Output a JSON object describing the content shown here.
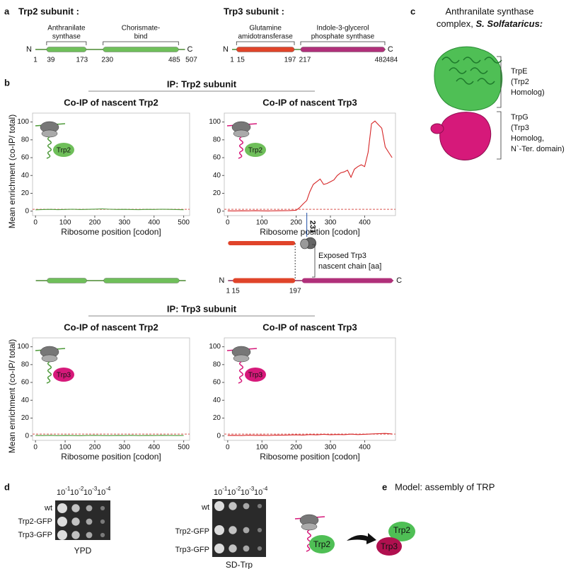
{
  "panel_a": {
    "label": "a",
    "trp2": {
      "title": "Trp2 subunit :",
      "n": "N",
      "c": "C",
      "start": 1,
      "end": 507,
      "domains": [
        {
          "name": [
            "Anthranilate",
            "synthase"
          ],
          "start": 39,
          "end": 173,
          "color": "#6fbf5a"
        },
        {
          "name": [
            "Chorismate-",
            "bind"
          ],
          "start": 230,
          "end": 485,
          "color": "#6fbf5a"
        }
      ]
    },
    "trp3": {
      "title": "Trp3 subunit :",
      "n": "N",
      "c": "C",
      "start": 1,
      "end": 484,
      "domains": [
        {
          "name": [
            "Glutamine",
            "amidotransferase"
          ],
          "start": 15,
          "end": 197,
          "color": "#e0442a"
        },
        {
          "name": [
            "Indole-3-glycerol",
            "phosphate synthase"
          ],
          "start": 217,
          "end": 482,
          "color": "#b0307a"
        }
      ]
    }
  },
  "panel_b": {
    "label": "b",
    "ip_headers": [
      "IP: Trp2 subunit",
      "IP: Trp3 subunit"
    ],
    "charts": [
      {
        "title": "Co-IP of nascent Trp2",
        "ylabel": "Mean enrichment (co-IP/ total)",
        "xlabel": "Ribosome position [codon]",
        "xlim": [
          -10,
          520
        ],
        "ylim": [
          -5,
          110
        ],
        "xticks": [
          0,
          100,
          200,
          300,
          400,
          500
        ],
        "yticks": [
          0,
          20,
          40,
          60,
          80,
          100
        ],
        "color": "#4e9a3a",
        "threshold": 2,
        "threshold_color": "#d9534f",
        "inset_label": "Trp2",
        "inset_color": "#6fbf5a",
        "x": [
          0,
          25,
          50,
          75,
          100,
          125,
          150,
          175,
          200,
          225,
          250,
          275,
          300,
          325,
          350,
          375,
          400,
          425,
          450,
          475,
          500
        ],
        "values": [
          1.5,
          1.8,
          2,
          1.7,
          1.9,
          2.1,
          1.8,
          2,
          2.2,
          2.5,
          2.1,
          1.9,
          2,
          1.8,
          1.7,
          2,
          1.9,
          2.1,
          2,
          1.8,
          1.6
        ]
      },
      {
        "title": "Co-IP of nascent Trp3",
        "xlabel": "Ribosome position [codon]",
        "xlim": [
          -10,
          490
        ],
        "ylim": [
          -5,
          110
        ],
        "xticks": [
          0,
          100,
          200,
          300,
          400
        ],
        "yticks": [
          0,
          20,
          40,
          60,
          80,
          100
        ],
        "color": "#d62728",
        "threshold": 2,
        "threshold_color": "#d9534f",
        "inset_label": "Trp2",
        "inset_color": "#6fbf5a",
        "annotation": 231,
        "x": [
          0,
          20,
          40,
          60,
          80,
          100,
          120,
          140,
          160,
          180,
          200,
          210,
          220,
          231,
          240,
          250,
          260,
          270,
          280,
          290,
          300,
          310,
          320,
          330,
          340,
          350,
          360,
          370,
          380,
          390,
          400,
          410,
          420,
          430,
          440,
          450,
          460,
          470,
          480
        ],
        "values": [
          0.3,
          0.2,
          0.4,
          0.3,
          0.5,
          0.3,
          0.2,
          0.4,
          0.5,
          0.6,
          1,
          4,
          8,
          12,
          22,
          30,
          33,
          36,
          30,
          31,
          33,
          35,
          40,
          43,
          44,
          46,
          38,
          47,
          50,
          52,
          50,
          66,
          98,
          101,
          97,
          93,
          72,
          66,
          60
        ]
      },
      {
        "title": "Co-IP of nascent Trp2",
        "ylabel": "Mean enrichment (co-IP/ total)",
        "xlabel": "Ribosome position [codon]",
        "xlim": [
          -10,
          520
        ],
        "ylim": [
          -5,
          110
        ],
        "xticks": [
          0,
          100,
          200,
          300,
          400,
          500
        ],
        "yticks": [
          0,
          20,
          40,
          60,
          80,
          100
        ],
        "color": "#4e9a3a",
        "threshold": 2,
        "threshold_color": "#d9534f",
        "inset_label": "Trp3",
        "inset_color": "#d6197a",
        "x": [
          0,
          25,
          50,
          75,
          100,
          125,
          150,
          175,
          200,
          225,
          250,
          275,
          300,
          325,
          350,
          375,
          400,
          425,
          450,
          475,
          500
        ],
        "values": [
          0.5,
          0.4,
          0.6,
          0.3,
          0.5,
          0.4,
          0.2,
          0.5,
          0.6,
          0.4,
          0.3,
          0.5,
          0.4,
          0.6,
          0.3,
          0.5,
          0.4,
          0.6,
          0.5,
          0.4,
          0.5
        ]
      },
      {
        "title": "Co-IP of nascent Trp3",
        "xlabel": "Ribosome position [codon]",
        "xlim": [
          -10,
          490
        ],
        "ylim": [
          -5,
          110
        ],
        "xticks": [
          0,
          100,
          200,
          300,
          400
        ],
        "yticks": [
          0,
          20,
          40,
          60,
          80,
          100
        ],
        "color": "#d62728",
        "threshold": 2,
        "threshold_color": "#d9534f",
        "inset_label": "Trp3",
        "inset_color": "#d6197a",
        "x": [
          0,
          20,
          40,
          60,
          80,
          100,
          120,
          140,
          160,
          180,
          200,
          220,
          240,
          260,
          280,
          300,
          320,
          340,
          360,
          380,
          400,
          420,
          440,
          460,
          480
        ],
        "values": [
          0.5,
          0.6,
          0.4,
          0.8,
          0.6,
          0.7,
          0.5,
          0.9,
          0.8,
          1,
          1.2,
          0.9,
          1.5,
          1.2,
          1.8,
          1.3,
          1.6,
          1.4,
          2,
          1.5,
          1.8,
          2.2,
          2.5,
          2.8,
          2.2
        ]
      }
    ],
    "exposed": {
      "label": [
        "Exposed Trp3",
        "nascent chain [aa]"
      ],
      "n": "N",
      "c": "C",
      "ticks": [
        1,
        15,
        197
      ]
    }
  },
  "panel_c": {
    "label": "c",
    "title": [
      "Anthranilate synthase",
      "complex,",
      "S. Solfataricus:"
    ],
    "trpe": [
      "TrpE",
      "(Trp2",
      "Homolog)"
    ],
    "trpg": [
      "TrpG",
      "(Trp3",
      "Homolog,",
      "N`-Ter. domain)"
    ]
  },
  "panel_d": {
    "label": "d",
    "plates": [
      {
        "medium": "YPD",
        "strains": [
          "wt",
          "Trp2-GFP",
          "Trp3-GFP"
        ],
        "dilutions": [
          {
            "base": "10",
            "exp": "-1"
          },
          {
            "base": "10",
            "exp": "-2"
          },
          {
            "base": "10",
            "exp": "-3"
          },
          {
            "base": "10",
            "exp": "-4"
          }
        ]
      },
      {
        "medium": "SD-Trp",
        "strains": [
          "wt",
          "Trp2-GFP",
          "Trp3-GFP"
        ],
        "dilutions": [
          {
            "base": "10",
            "exp": "-1"
          },
          {
            "base": "10",
            "exp": "-2"
          },
          {
            "base": "10",
            "exp": "-3"
          },
          {
            "base": "10",
            "exp": "-4"
          }
        ]
      }
    ]
  },
  "panel_e": {
    "label": "e",
    "title": "Model: assembly of TRP",
    "nascent_label": "Trp2",
    "complex_labels": [
      "Trp2",
      "Trp3"
    ]
  }
}
